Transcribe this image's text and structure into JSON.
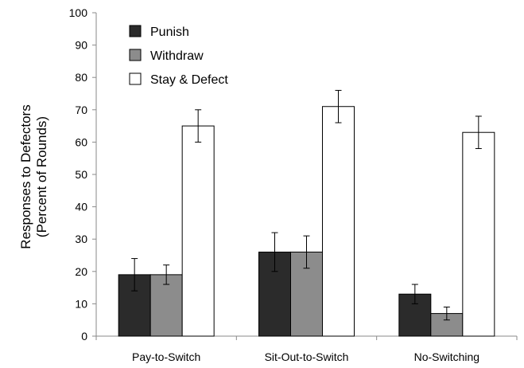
{
  "chart_data": {
    "type": "bar",
    "ylabel_lines": [
      "Responses to Defectors",
      "(Percent of Rounds)"
    ],
    "xlabel": "",
    "ylim": [
      0,
      100
    ],
    "ytick_step": 10,
    "ytick_labels": [
      "0",
      "10",
      "20",
      "30",
      "40",
      "50",
      "60",
      "70",
      "80",
      "90",
      "100"
    ],
    "categories": [
      "Pay-to-Switch",
      "Sit-Out-to-Switch",
      "No-Switching"
    ],
    "series": [
      {
        "name": "Punish",
        "color": "#2b2b2b",
        "values": [
          19,
          26,
          13
        ],
        "error": [
          5,
          6,
          3
        ]
      },
      {
        "name": "Withdraw",
        "color": "#8c8c8c",
        "values": [
          19,
          26,
          7
        ],
        "error": [
          3,
          5,
          2
        ]
      },
      {
        "name": "Stay & Defect",
        "color": "#ffffff",
        "values": [
          65,
          71,
          63
        ],
        "error": [
          5,
          5,
          5
        ]
      }
    ],
    "legend_position": "top-left",
    "grid": false,
    "error_bars": true
  }
}
